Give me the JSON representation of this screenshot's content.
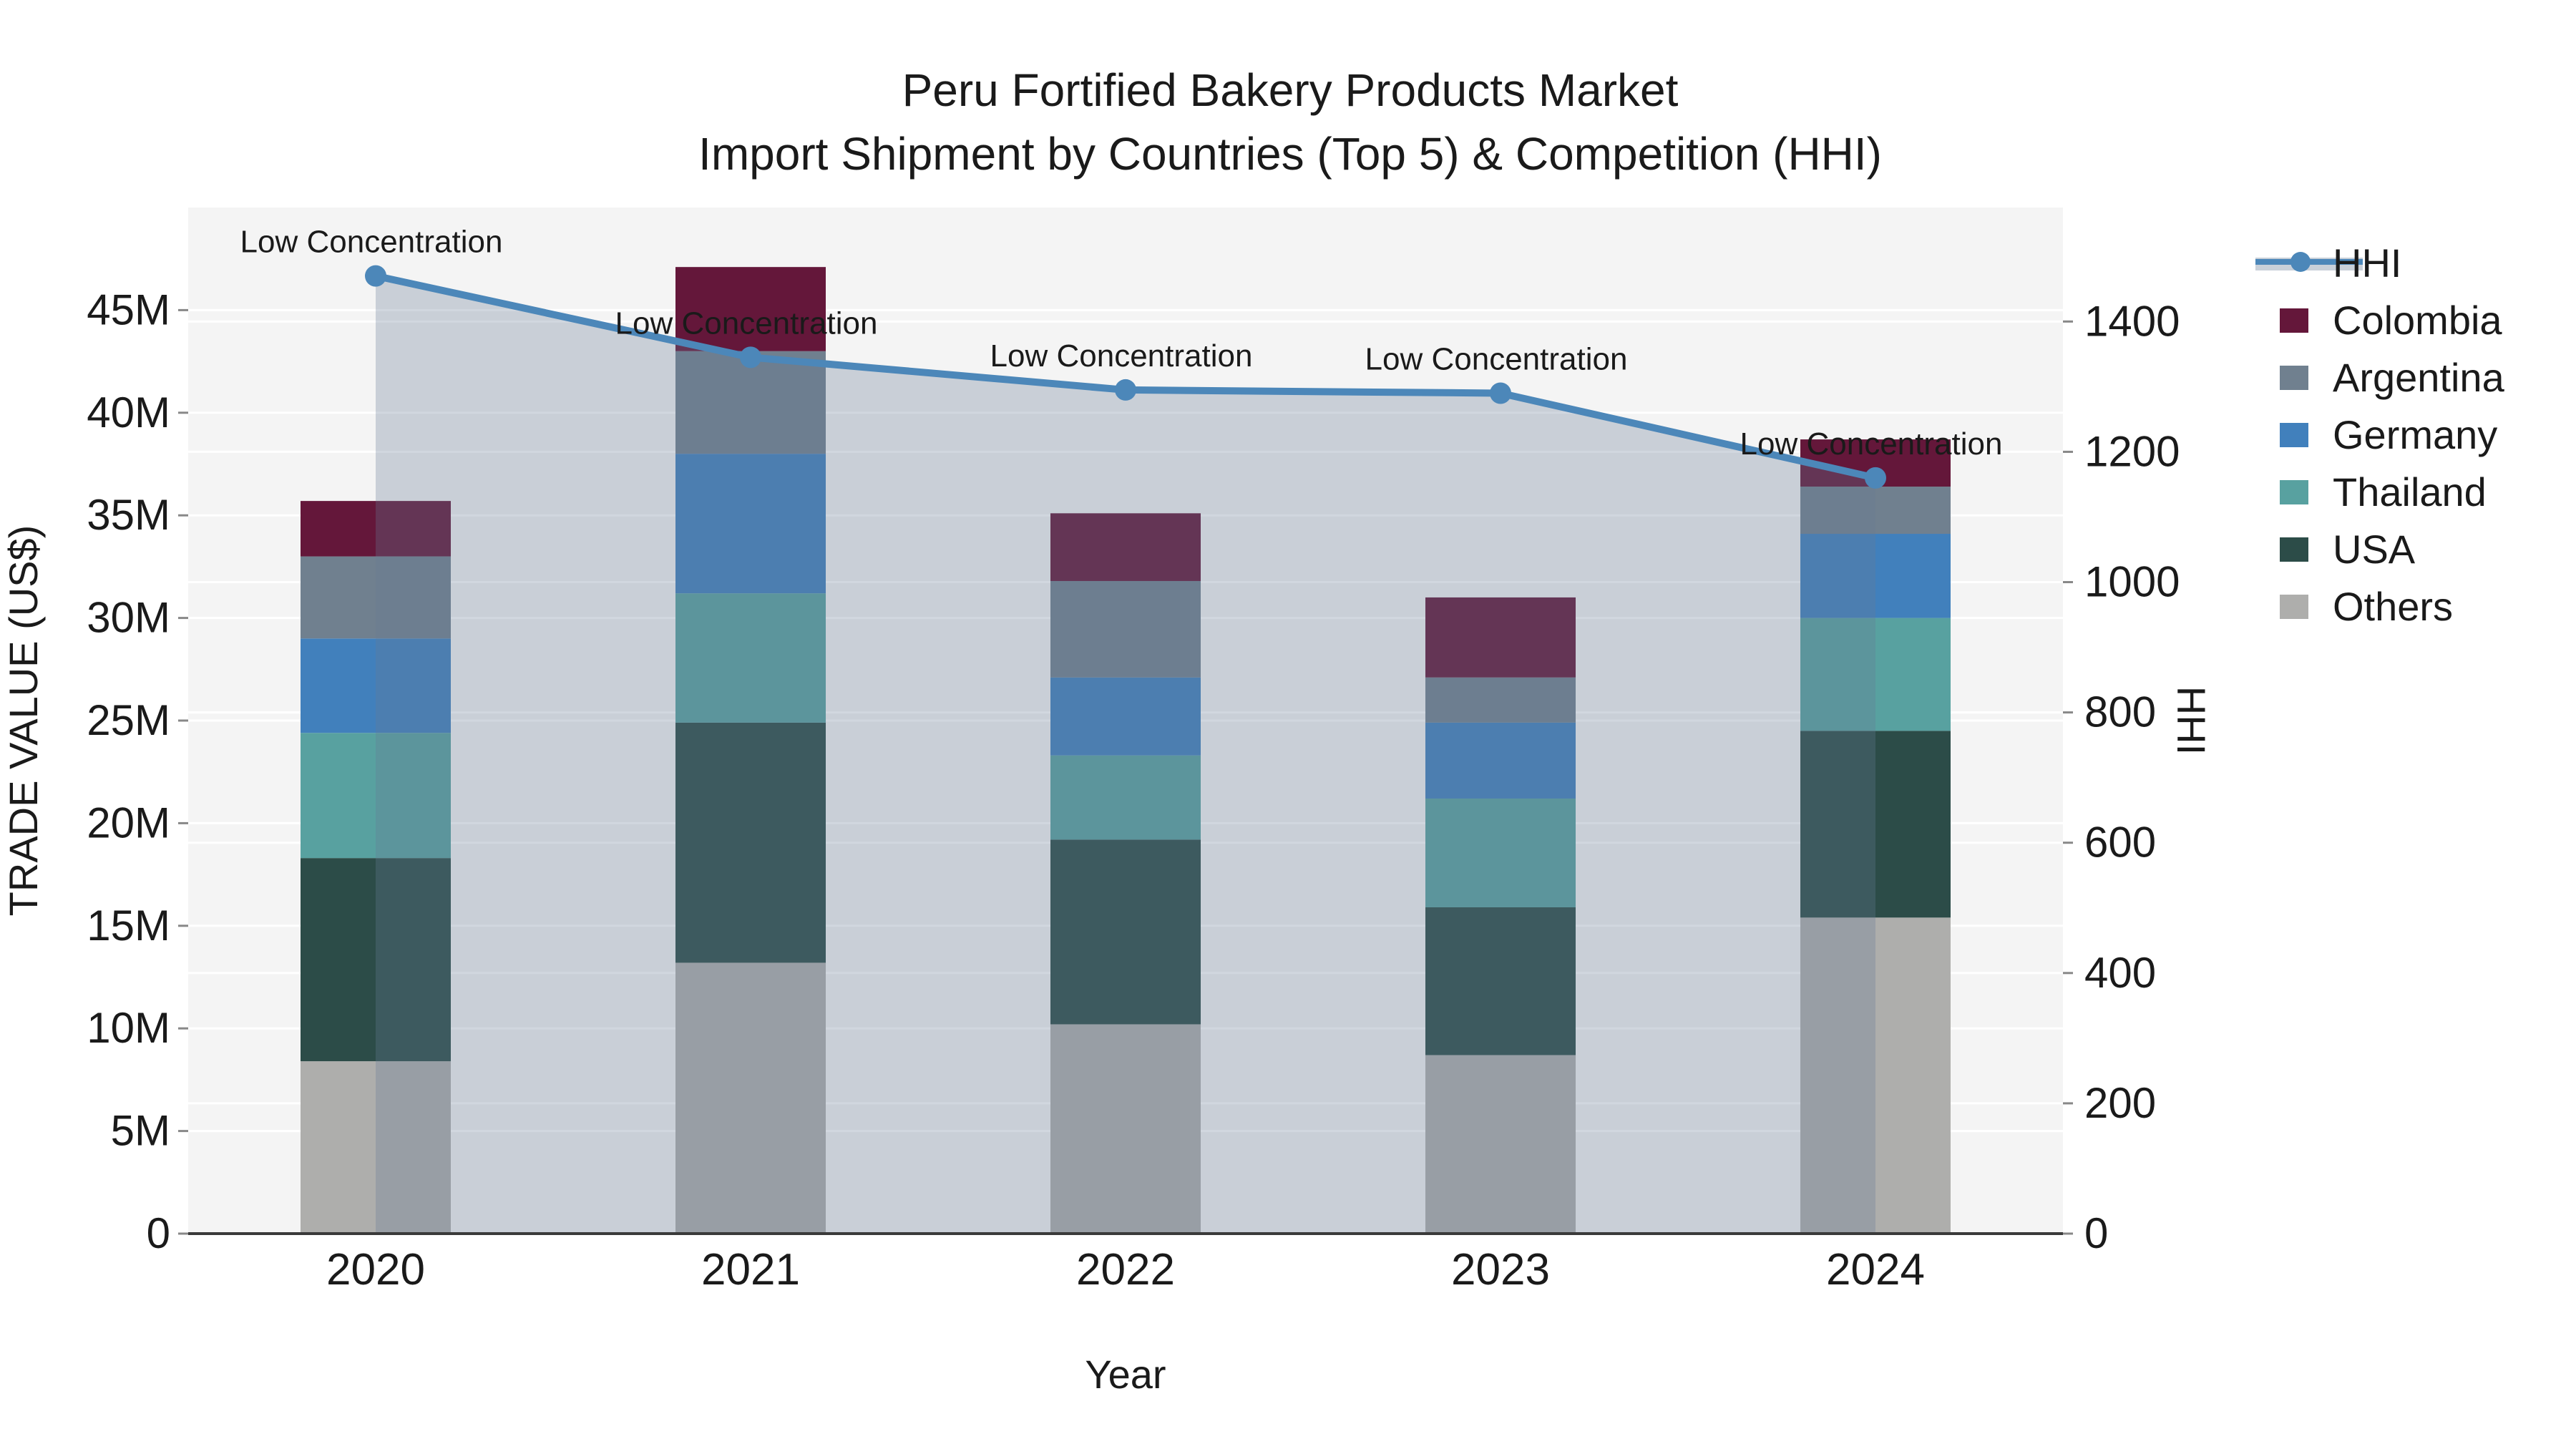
{
  "title": {
    "line1": "Peru Fortified Bakery Products Market",
    "line2": "Import Shipment by Countries (Top 5) & Competition (HHI)"
  },
  "axes": {
    "x_label": "Year",
    "left_label": "TRADE VALUE (US$)",
    "right_label": "HHI",
    "left_ticks": [
      {
        "label": "0",
        "value": 0
      },
      {
        "label": "5M",
        "value": 5
      },
      {
        "label": "10M",
        "value": 10
      },
      {
        "label": "15M",
        "value": 15
      },
      {
        "label": "20M",
        "value": 20
      },
      {
        "label": "25M",
        "value": 25
      },
      {
        "label": "30M",
        "value": 30
      },
      {
        "label": "35M",
        "value": 35
      },
      {
        "label": "40M",
        "value": 40
      },
      {
        "label": "45M",
        "value": 45
      }
    ],
    "left_max": 50,
    "right_ticks": [
      {
        "label": "0",
        "value": 0
      },
      {
        "label": "200",
        "value": 200
      },
      {
        "label": "400",
        "value": 400
      },
      {
        "label": "600",
        "value": 600
      },
      {
        "label": "800",
        "value": 800
      },
      {
        "label": "1000",
        "value": 1000
      },
      {
        "label": "1200",
        "value": 1200
      },
      {
        "label": "1400",
        "value": 1400
      }
    ],
    "right_max": 1575,
    "grid": true
  },
  "chart_data": {
    "type": "combo: stacked-bar + line-area",
    "categories": [
      "2020",
      "2021",
      "2022",
      "2023",
      "2024"
    ],
    "bar_unit": "Trade value, millions US$ (left axis)",
    "series": [
      {
        "name": "Others",
        "color": "#AEAEAC",
        "values": [
          8.4,
          13.2,
          10.2,
          8.7,
          15.4
        ]
      },
      {
        "name": "USA",
        "color": "#2C4C48",
        "values": [
          9.9,
          11.7,
          9.0,
          7.2,
          9.1
        ]
      },
      {
        "name": "Thailand",
        "color": "#58A1A0",
        "values": [
          6.1,
          6.3,
          4.1,
          5.3,
          5.5
        ]
      },
      {
        "name": "Germany",
        "color": "#4180BC",
        "values": [
          4.6,
          6.8,
          3.8,
          3.7,
          4.1
        ]
      },
      {
        "name": "Argentina",
        "color": "#70808F",
        "values": [
          4.0,
          5.0,
          4.7,
          2.2,
          2.3
        ]
      },
      {
        "name": "Colombia",
        "color": "#64173A",
        "values": [
          2.7,
          4.1,
          3.3,
          3.9,
          2.3
        ]
      }
    ],
    "bar_totals": [
      35.7,
      47.1,
      35.1,
      31.0,
      38.7
    ],
    "line_series": {
      "name": "HHI",
      "unit": "HHI index (right axis)",
      "values": [
        1470,
        1345,
        1295,
        1290,
        1160
      ],
      "color": "#4C87B9",
      "area_fill": "rgba(104,122,148,0.30)"
    },
    "point_annotations": [
      "Low Concentration",
      "Low Concentration",
      "Low Concentration",
      "Low Concentration",
      "Low Concentration"
    ],
    "legend_position": "right",
    "ylim_left": [
      0,
      50
    ],
    "ylim_right": [
      0,
      1575
    ]
  },
  "legend": {
    "items": [
      {
        "label": "HHI",
        "type": "line",
        "color": "#4C87B9",
        "band": "#C9D0D9"
      },
      {
        "label": "Colombia",
        "type": "patch",
        "color": "#64173A"
      },
      {
        "label": "Argentina",
        "type": "patch",
        "color": "#70808F"
      },
      {
        "label": "Germany",
        "type": "patch",
        "color": "#4180BC"
      },
      {
        "label": "Thailand",
        "type": "patch",
        "color": "#58A1A0"
      },
      {
        "label": "USA",
        "type": "patch",
        "color": "#2C4C48"
      },
      {
        "label": "Others",
        "type": "patch",
        "color": "#AEAEAC"
      }
    ]
  },
  "colors": {
    "plot_background": "#f4f4f4",
    "figure_background": "#ffffff",
    "gridline": "#ffffff",
    "axis_line": "#3a3a3a",
    "tick_mark": "#888888"
  }
}
